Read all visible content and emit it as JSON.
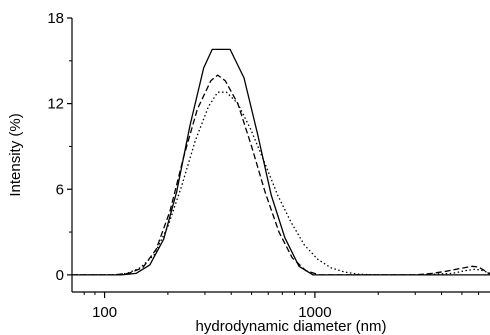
{
  "chart_data": {
    "type": "line",
    "title": "",
    "xlabel": "hydrodynamic diameter (nm)",
    "ylabel": "Intensity (%)",
    "x_scale": "log",
    "xlim": [
      70,
      6800
    ],
    "ylim": [
      -1.2,
      18
    ],
    "x_ticks": [
      100,
      1000
    ],
    "x_tick_labels": [
      "100",
      "1000"
    ],
    "y_ticks": [
      0,
      6,
      12,
      18
    ],
    "y_tick_labels": [
      "0",
      "6",
      "12",
      "18"
    ],
    "grid": false,
    "legend": "none",
    "series": [
      {
        "style": "solid",
        "color": "#000000",
        "points": [
          [
            70,
            0
          ],
          [
            100,
            0
          ],
          [
            120,
            0
          ],
          [
            141,
            0.1
          ],
          [
            164,
            0.7
          ],
          [
            191,
            2.5
          ],
          [
            220,
            5.8
          ],
          [
            255,
            10.5
          ],
          [
            296,
            14.5
          ],
          [
            325,
            15.8
          ],
          [
            395,
            15.8
          ],
          [
            460,
            13.8
          ],
          [
            535,
            9.8
          ],
          [
            620,
            5.6
          ],
          [
            720,
            2.6
          ],
          [
            840,
            0.6
          ],
          [
            980,
            0
          ],
          [
            1200,
            0
          ],
          [
            2000,
            0
          ],
          [
            4000,
            0
          ],
          [
            6800,
            0
          ]
        ]
      },
      {
        "style": "dashed",
        "color": "#000000",
        "points": [
          [
            70,
            0
          ],
          [
            100,
            0
          ],
          [
            110,
            0
          ],
          [
            130,
            0.1
          ],
          [
            152,
            0.5
          ],
          [
            176,
            1.8
          ],
          [
            205,
            4.5
          ],
          [
            238,
            8.3
          ],
          [
            276,
            11.6
          ],
          [
            320,
            13.6
          ],
          [
            345,
            14.0
          ],
          [
            375,
            13.6
          ],
          [
            430,
            12.0
          ],
          [
            500,
            9.0
          ],
          [
            580,
            5.8
          ],
          [
            675,
            3.0
          ],
          [
            780,
            1.2
          ],
          [
            905,
            0.3
          ],
          [
            1050,
            0
          ],
          [
            1500,
            0
          ],
          [
            3000,
            0
          ],
          [
            3600,
            0.1
          ],
          [
            4200,
            0.25
          ],
          [
            4900,
            0.45
          ],
          [
            5600,
            0.6
          ],
          [
            6000,
            0.55
          ],
          [
            6400,
            0.3
          ],
          [
            6800,
            0.05
          ]
        ]
      },
      {
        "style": "dotted",
        "color": "#000000",
        "points": [
          [
            70,
            0
          ],
          [
            100,
            0
          ],
          [
            110,
            0
          ],
          [
            128,
            0.1
          ],
          [
            148,
            0.5
          ],
          [
            172,
            1.4
          ],
          [
            200,
            3.4
          ],
          [
            232,
            6.2
          ],
          [
            270,
            9.4
          ],
          [
            312,
            11.8
          ],
          [
            345,
            12.8
          ],
          [
            380,
            12.8
          ],
          [
            430,
            12.0
          ],
          [
            495,
            10.2
          ],
          [
            575,
            7.9
          ],
          [
            665,
            5.6
          ],
          [
            770,
            3.7
          ],
          [
            890,
            2.1
          ],
          [
            1030,
            1.1
          ],
          [
            1190,
            0.5
          ],
          [
            1380,
            0.2
          ],
          [
            1600,
            0.05
          ],
          [
            2000,
            0
          ],
          [
            3000,
            0
          ],
          [
            4500,
            0.1
          ],
          [
            5200,
            0.3
          ],
          [
            5800,
            0.4
          ],
          [
            6300,
            0.3
          ],
          [
            6800,
            0.1
          ]
        ]
      }
    ]
  }
}
